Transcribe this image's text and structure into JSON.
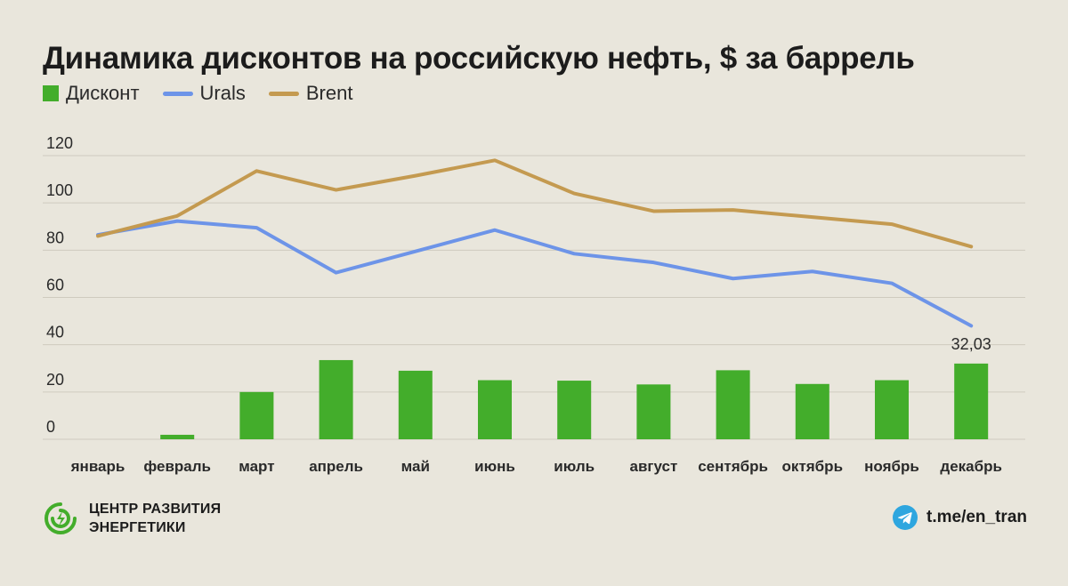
{
  "header": {
    "title": "Динамика дисконтов на российскую нефть, $ за баррель"
  },
  "colors": {
    "discount": "#43ad2b",
    "urals": "#6d94e8",
    "brent": "#c49a50",
    "grid": "#cfcbbf"
  },
  "chart_data": {
    "type": "bar+line",
    "title": "Динамика дисконтов на российскую нефть, $ за баррель",
    "categories": [
      "январь",
      "февраль",
      "март",
      "апрель",
      "май",
      "июнь",
      "июль",
      "август",
      "сентябрь",
      "октябрь",
      "ноябрь",
      "декабрь"
    ],
    "series": [
      {
        "name": "Дисконт",
        "type": "bar",
        "values": [
          0,
          1.9,
          20,
          33.5,
          29,
          25,
          24.8,
          23.2,
          29.2,
          23.4,
          25,
          32.03
        ]
      },
      {
        "name": "Urals",
        "type": "line",
        "values": [
          86.5,
          92.3,
          89.5,
          70.5,
          79.5,
          88.5,
          78.5,
          74.8,
          68,
          71,
          66,
          48
        ]
      },
      {
        "name": "Brent",
        "type": "line",
        "values": [
          86,
          94.5,
          113.5,
          105.5,
          111.5,
          118,
          104,
          96.5,
          97,
          94,
          91,
          81.5
        ]
      }
    ],
    "yticks": [
      0,
      20,
      40,
      60,
      80,
      100,
      120
    ],
    "ylim": [
      0,
      120
    ],
    "grid": true,
    "legend_position": "top-left",
    "annotations": [
      {
        "category": "декабрь",
        "series": "Дисконт",
        "text": "32,03"
      }
    ]
  },
  "footer": {
    "logo_line1": "ЦЕНТР РАЗВИТИЯ",
    "logo_line2": "ЭНЕРГЕТИКИ",
    "link_text": "t.me/en_tran",
    "logo_icon": "energy-logo-icon",
    "link_icon": "telegram-icon"
  }
}
